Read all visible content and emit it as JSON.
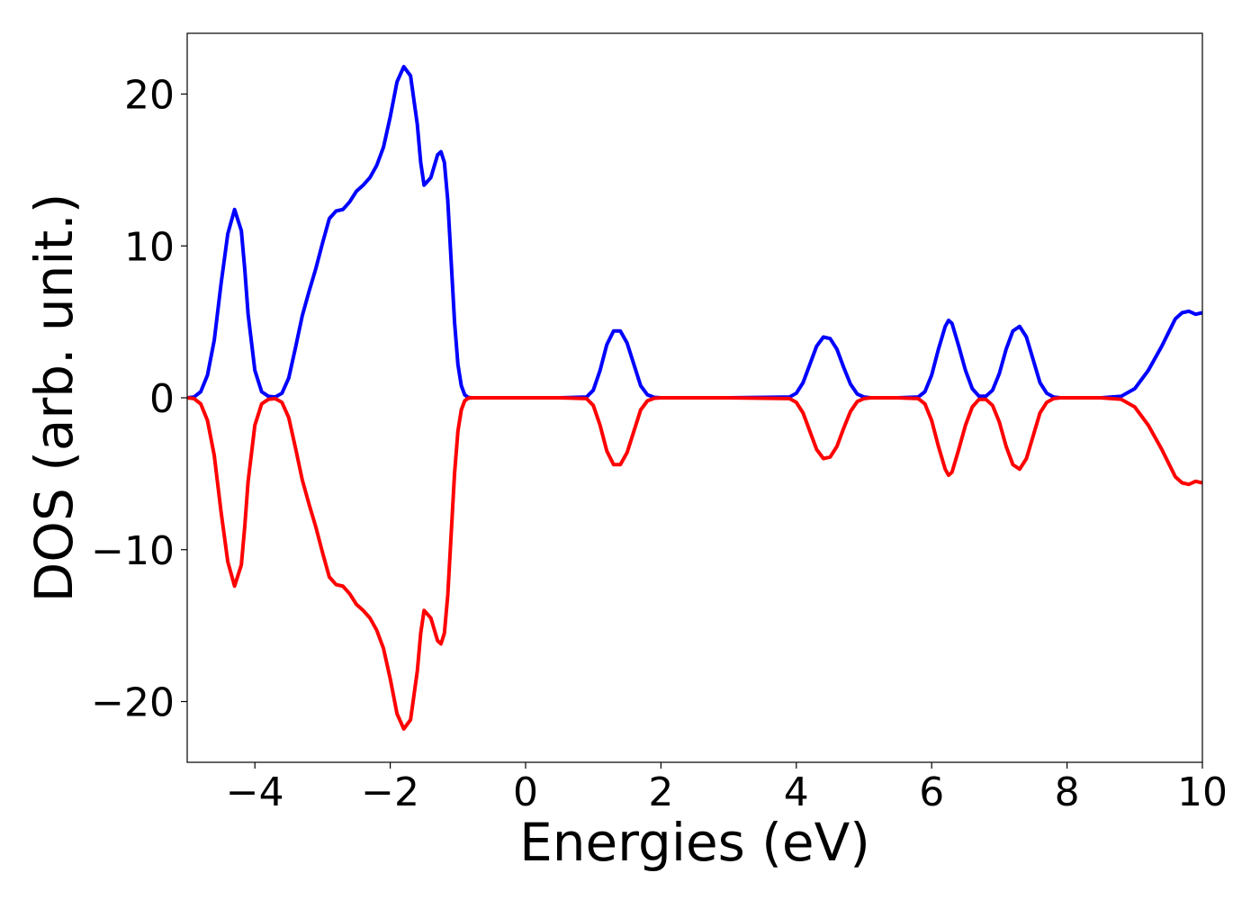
{
  "chart_data": {
    "type": "line",
    "title": "",
    "xlabel": "Energies (eV)",
    "ylabel": "DOS (arb. unit.)",
    "xlim": [
      -5,
      10
    ],
    "ylim": [
      -24,
      24
    ],
    "grid": false,
    "legend": "none",
    "xticks": [
      -4,
      -2,
      0,
      2,
      4,
      6,
      8,
      10
    ],
    "xtick_labels": [
      "−4",
      "−2",
      "0",
      "2",
      "4",
      "6",
      "8",
      "10"
    ],
    "yticks": [
      -20,
      -10,
      0,
      10,
      20
    ],
    "ytick_labels": [
      "−20",
      "−10",
      "0",
      "10",
      "20"
    ],
    "series": [
      {
        "color": "#0000ff",
        "x": [
          -5.0,
          -4.9,
          -4.8,
          -4.7,
          -4.6,
          -4.5,
          -4.4,
          -4.3,
          -4.2,
          -4.15,
          -4.1,
          -4.0,
          -3.9,
          -3.8,
          -3.7,
          -3.6,
          -3.5,
          -3.4,
          -3.3,
          -3.2,
          -3.1,
          -3.0,
          -2.9,
          -2.8,
          -2.7,
          -2.6,
          -2.5,
          -2.4,
          -2.3,
          -2.2,
          -2.1,
          -2.0,
          -1.9,
          -1.8,
          -1.7,
          -1.6,
          -1.55,
          -1.5,
          -1.4,
          -1.3,
          -1.25,
          -1.2,
          -1.15,
          -1.1,
          -1.05,
          -1.0,
          -0.95,
          -0.9,
          -0.85,
          -0.8,
          -0.7,
          -0.6,
          -0.5,
          -0.4,
          0.0,
          0.5,
          0.9,
          1.0,
          1.1,
          1.2,
          1.3,
          1.4,
          1.45,
          1.5,
          1.6,
          1.7,
          1.8,
          1.9,
          2.0,
          3.0,
          3.9,
          4.0,
          4.1,
          4.2,
          4.3,
          4.4,
          4.5,
          4.6,
          4.65,
          4.7,
          4.8,
          4.9,
          5.0,
          5.1,
          5.2,
          5.5,
          5.8,
          5.9,
          6.0,
          6.1,
          6.2,
          6.25,
          6.3,
          6.4,
          6.5,
          6.6,
          6.7,
          6.8,
          6.9,
          7.0,
          7.1,
          7.2,
          7.3,
          7.4,
          7.5,
          7.6,
          7.7,
          7.8,
          7.9,
          8.0,
          8.5,
          8.8,
          9.0,
          9.1,
          9.2,
          9.3,
          9.4,
          9.5,
          9.6,
          9.7,
          9.8,
          9.9,
          10.0
        ],
        "y": [
          0.0,
          0.05,
          0.4,
          1.5,
          3.8,
          7.5,
          10.8,
          12.4,
          11.0,
          8.5,
          5.5,
          1.8,
          0.4,
          0.1,
          0.05,
          0.3,
          1.3,
          3.3,
          5.4,
          7.0,
          8.5,
          10.2,
          11.8,
          12.3,
          12.4,
          12.9,
          13.6,
          14.0,
          14.5,
          15.3,
          16.5,
          18.5,
          20.8,
          21.8,
          21.2,
          18.0,
          15.5,
          14.0,
          14.5,
          16.0,
          16.2,
          15.5,
          13.0,
          9.0,
          5.0,
          2.2,
          0.8,
          0.2,
          0.03,
          0.0,
          0.0,
          0.0,
          0.0,
          0.0,
          0.0,
          0.0,
          0.05,
          0.5,
          1.8,
          3.5,
          4.4,
          4.4,
          4.0,
          3.6,
          2.2,
          0.8,
          0.2,
          0.03,
          0.0,
          0.0,
          0.05,
          0.3,
          1.0,
          2.2,
          3.4,
          4.0,
          3.9,
          3.2,
          2.6,
          2.0,
          0.9,
          0.25,
          0.05,
          0.0,
          0.0,
          0.0,
          0.05,
          0.4,
          1.5,
          3.2,
          4.7,
          5.1,
          4.9,
          3.4,
          1.8,
          0.6,
          0.1,
          0.1,
          0.5,
          1.6,
          3.2,
          4.4,
          4.7,
          4.0,
          2.5,
          1.0,
          0.3,
          0.05,
          0.0,
          0.0,
          0.0,
          0.1,
          0.6,
          1.2,
          1.8,
          2.6,
          3.4,
          4.3,
          5.2,
          5.6,
          5.7,
          5.5,
          5.6
        ]
      },
      {
        "color": "#ff0000",
        "x": [
          -5.0,
          -4.9,
          -4.8,
          -4.7,
          -4.6,
          -4.5,
          -4.4,
          -4.3,
          -4.2,
          -4.15,
          -4.1,
          -4.0,
          -3.9,
          -3.8,
          -3.7,
          -3.6,
          -3.5,
          -3.4,
          -3.3,
          -3.2,
          -3.1,
          -3.0,
          -2.9,
          -2.8,
          -2.7,
          -2.6,
          -2.5,
          -2.4,
          -2.3,
          -2.2,
          -2.1,
          -2.0,
          -1.9,
          -1.8,
          -1.7,
          -1.6,
          -1.55,
          -1.5,
          -1.4,
          -1.3,
          -1.25,
          -1.2,
          -1.15,
          -1.1,
          -1.05,
          -1.0,
          -0.95,
          -0.9,
          -0.85,
          -0.8,
          -0.7,
          -0.6,
          -0.5,
          -0.4,
          0.0,
          0.5,
          0.9,
          1.0,
          1.1,
          1.2,
          1.3,
          1.4,
          1.45,
          1.5,
          1.6,
          1.7,
          1.8,
          1.9,
          2.0,
          3.0,
          3.9,
          4.0,
          4.1,
          4.2,
          4.3,
          4.4,
          4.5,
          4.6,
          4.65,
          4.7,
          4.8,
          4.9,
          5.0,
          5.1,
          5.2,
          5.5,
          5.8,
          5.9,
          6.0,
          6.1,
          6.2,
          6.25,
          6.3,
          6.4,
          6.5,
          6.6,
          6.7,
          6.8,
          6.9,
          7.0,
          7.1,
          7.2,
          7.3,
          7.4,
          7.5,
          7.6,
          7.7,
          7.8,
          7.9,
          8.0,
          8.5,
          8.8,
          9.0,
          9.1,
          9.2,
          9.3,
          9.4,
          9.5,
          9.6,
          9.7,
          9.8,
          9.9,
          10.0
        ],
        "y": [
          0.0,
          -0.05,
          -0.4,
          -1.5,
          -3.8,
          -7.5,
          -10.8,
          -12.4,
          -11.0,
          -8.5,
          -5.5,
          -1.8,
          -0.4,
          -0.1,
          -0.05,
          -0.3,
          -1.3,
          -3.3,
          -5.4,
          -7.0,
          -8.5,
          -10.2,
          -11.8,
          -12.3,
          -12.4,
          -12.9,
          -13.6,
          -14.0,
          -14.5,
          -15.3,
          -16.5,
          -18.5,
          -20.8,
          -21.8,
          -21.2,
          -18.0,
          -15.5,
          -14.0,
          -14.5,
          -16.0,
          -16.2,
          -15.5,
          -13.0,
          -9.0,
          -5.0,
          -2.2,
          -0.8,
          -0.2,
          -0.03,
          0.0,
          0.0,
          0.0,
          0.0,
          0.0,
          0.0,
          0.0,
          -0.05,
          -0.5,
          -1.8,
          -3.5,
          -4.4,
          -4.4,
          -4.0,
          -3.6,
          -2.2,
          -0.8,
          -0.2,
          -0.03,
          0.0,
          0.0,
          -0.05,
          -0.3,
          -1.0,
          -2.2,
          -3.4,
          -4.0,
          -3.9,
          -3.2,
          -2.6,
          -2.0,
          -0.9,
          -0.25,
          -0.05,
          0.0,
          0.0,
          0.0,
          -0.05,
          -0.4,
          -1.5,
          -3.2,
          -4.7,
          -5.1,
          -4.9,
          -3.4,
          -1.8,
          -0.6,
          -0.1,
          -0.1,
          -0.5,
          -1.6,
          -3.2,
          -4.4,
          -4.7,
          -4.0,
          -2.5,
          -1.0,
          -0.3,
          -0.05,
          0.0,
          0.0,
          0.0,
          -0.1,
          -0.6,
          -1.2,
          -1.8,
          -2.6,
          -3.4,
          -4.3,
          -5.2,
          -5.6,
          -5.7,
          -5.5,
          -5.6
        ]
      }
    ]
  }
}
